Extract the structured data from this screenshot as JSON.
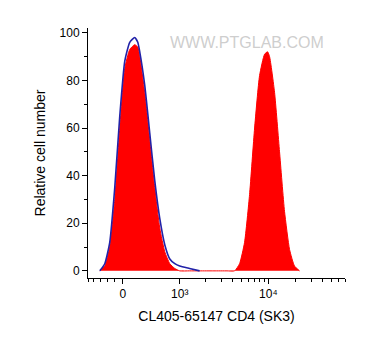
{
  "chart_data": {
    "type": "area",
    "x_label": "CL405-65147 CD4 (SK3)",
    "y_label": "Relative cell number",
    "annotations": [
      {
        "text": "WWW.PTGLAB.COM"
      }
    ],
    "series": [
      {
        "type": "area",
        "color": "#ff0000",
        "x": [
          -308,
          -236,
          -168,
          -102,
          -38,
          25,
          89,
          154,
          195,
          222,
          293,
          369,
          451,
          541,
          639,
          748,
          869,
          1001,
          1315,
          1720,
          2500,
          3500,
          4245,
          4820,
          5475,
          6215,
          7065,
          8015,
          9105,
          9825,
          10335,
          11725,
          13310,
          15100,
          17150,
          19450,
          22100
        ],
        "values": [
          0,
          2,
          10,
          30,
          60,
          85,
          93,
          95,
          94,
          90,
          75,
          55,
          35,
          18,
          8,
          3,
          1,
          0,
          0,
          0,
          0,
          0,
          0,
          3,
          12,
          32,
          60,
          82,
          91,
          92,
          90,
          75,
          50,
          25,
          9,
          2,
          0
        ]
      },
      {
        "type": "line",
        "color": "#2222a8",
        "x": [
          -308,
          -236,
          -168,
          -102,
          -38,
          25,
          89,
          154,
          195,
          222,
          293,
          369,
          451,
          541,
          639,
          748,
          869,
          1001,
          1315,
          1720
        ],
        "values": [
          0,
          3,
          12,
          35,
          65,
          88,
          96,
          98,
          96,
          92,
          78,
          58,
          38,
          22,
          11,
          5,
          3,
          2,
          1,
          0
        ]
      }
    ],
    "xlim": [
      -500,
      70000
    ],
    "xticks": [
      0,
      {
        "value": 1000,
        "label": "10³"
      },
      {
        "value": 10000,
        "label": "10⁴"
      }
    ],
    "ylim": [
      -3,
      102
    ],
    "yticks": [
      0,
      20,
      40,
      60,
      80,
      100
    ],
    "grid": false
  }
}
